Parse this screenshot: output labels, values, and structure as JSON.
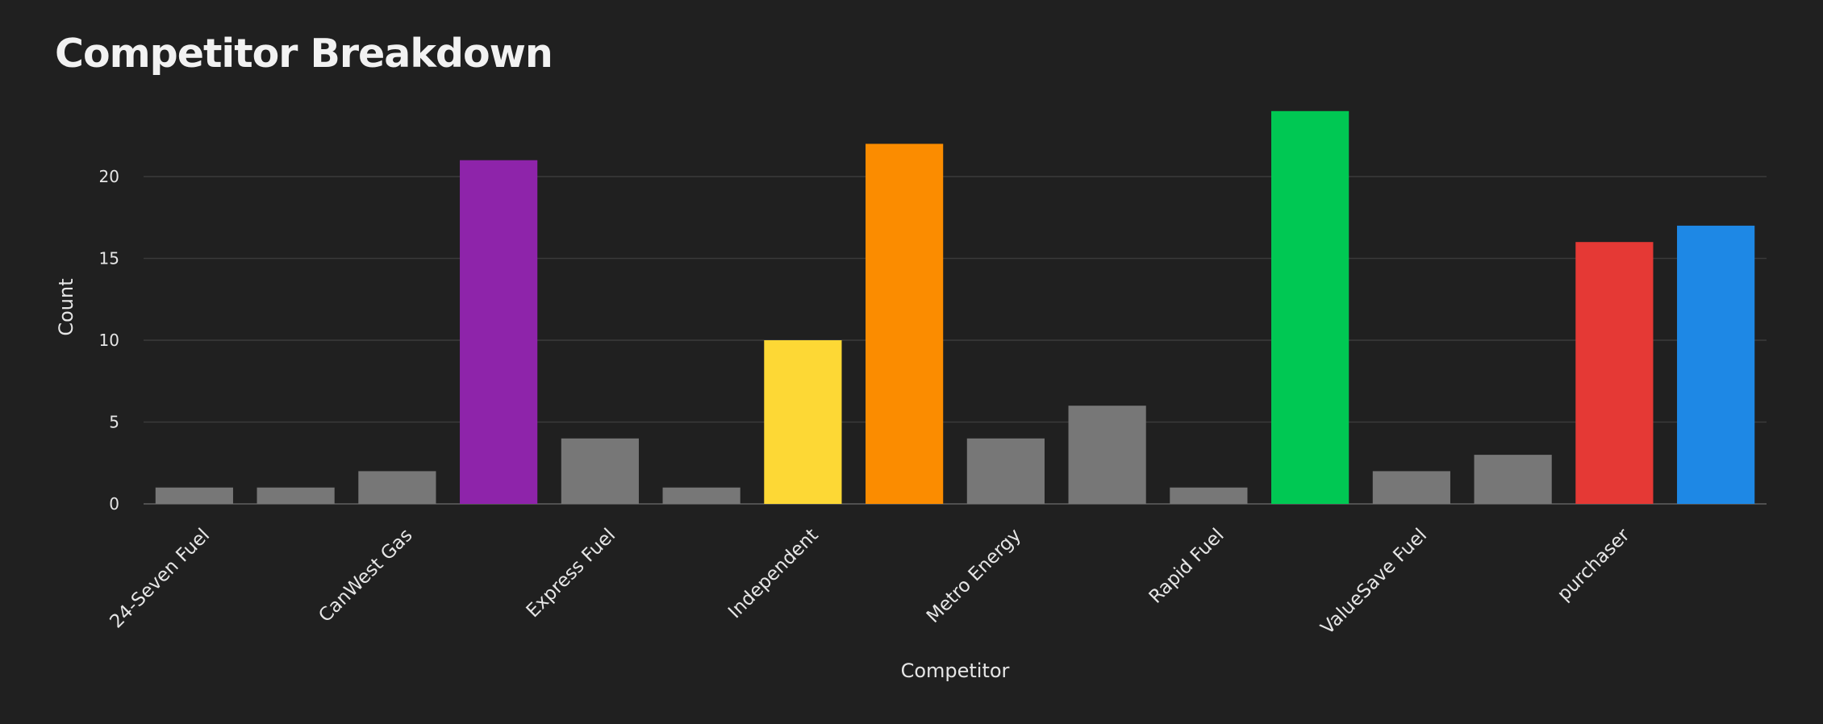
{
  "chart_data": {
    "type": "bar",
    "title": "Competitor Breakdown",
    "xlabel": "Competitor",
    "ylabel": "Count",
    "ylim": [
      0,
      24
    ],
    "yticks": [
      0,
      5,
      10,
      15,
      20
    ],
    "grid": true,
    "categories": [
      "24-Seven Fuel",
      "",
      "CanWest Gas",
      "",
      "Express Fuel",
      "",
      "Independent",
      "",
      "Metro Energy",
      "",
      "Rapid Fuel",
      "",
      "ValueSave Fuel",
      "",
      "purchaser",
      ""
    ],
    "x_tick_labels": [
      "24-Seven Fuel",
      "CanWest Gas",
      "Express Fuel",
      "Independent",
      "Metro Energy",
      "Rapid Fuel",
      "ValueSave Fuel",
      "purchaser"
    ],
    "values": [
      1,
      1,
      2,
      21,
      4,
      1,
      10,
      22,
      4,
      6,
      1,
      24,
      2,
      3,
      16,
      17
    ],
    "colors": [
      "#777777",
      "#777777",
      "#777777",
      "#8e24aa",
      "#777777",
      "#777777",
      "#fdd835",
      "#fb8c00",
      "#777777",
      "#777777",
      "#777777",
      "#00c853",
      "#777777",
      "#777777",
      "#e53935",
      "#1e88e5"
    ],
    "background": "#202020",
    "grid_color": "#3a3a3a",
    "text_color": "#e6e6e6"
  }
}
